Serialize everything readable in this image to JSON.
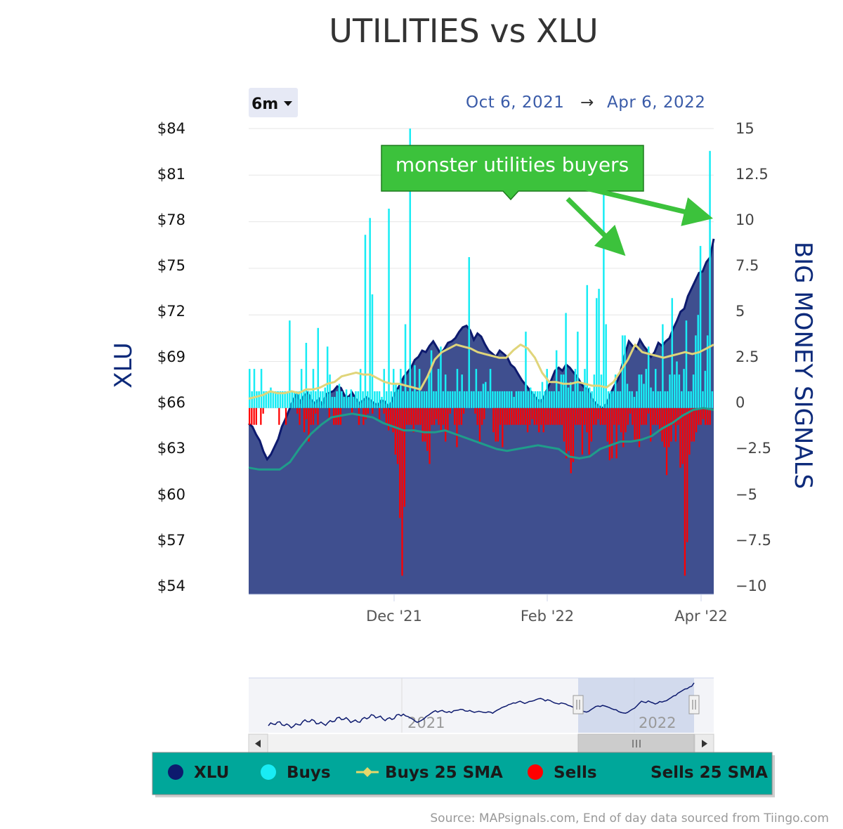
{
  "title": "UTILITIES vs XLU",
  "zoom": {
    "label": "6m"
  },
  "range": {
    "from": "Oct 6, 2021",
    "arrow": "→",
    "to": "Apr 6, 2022"
  },
  "left_axis": {
    "label": "XLU",
    "ticks": [
      "$84",
      "$81",
      "$78",
      "$75",
      "$72",
      "$69",
      "$66",
      "$63",
      "$60",
      "$57",
      "$54"
    ]
  },
  "right_axis": {
    "label": "BIG MONEY SIGNALS",
    "ticks": [
      "15",
      "12.5",
      "10",
      "7.5",
      "5",
      "2.5",
      "0",
      "−2.5",
      "−5",
      "−7.5",
      "−10"
    ]
  },
  "x_ticks": [
    "Dec '21",
    "Feb '22",
    "Apr '22"
  ],
  "annotation": {
    "text": "monster utilities buyers"
  },
  "navigator": {
    "year_labels": [
      "2021",
      "2022"
    ]
  },
  "legend": [
    {
      "label": "XLU",
      "color": "#0d1a6e"
    },
    {
      "label": "Buys",
      "color": "#19ecf4"
    },
    {
      "label": "Buys 25 SMA",
      "color": "#e6d86a"
    },
    {
      "label": "Sells",
      "color": "#ff0000"
    },
    {
      "label": "Sells 25 SMA",
      "color": ""
    }
  ],
  "source": "Source: MAPsignals.com, End of day data sourced from Tiingo.com",
  "colors": {
    "area": "#3f4f8f",
    "xlu_line": "#0d1a6e",
    "buys": "#19ecf4",
    "sells": "#ff0000",
    "buys_sma": "#e0d57a",
    "sells_sma": "#1f9d8a",
    "legend_bg": "#00a79a",
    "annotation_bg": "#3cc23c"
  },
  "chart_data": {
    "type": "bar",
    "dates": [
      "2021-10-06",
      "2021-10-07",
      "2021-10-08",
      "2021-10-11",
      "2021-10-12",
      "2021-10-13",
      "2021-10-14",
      "2021-10-15",
      "2021-10-18",
      "2021-10-19",
      "2021-10-20",
      "2021-10-21",
      "2021-10-22",
      "2021-10-25",
      "2021-10-26",
      "2021-10-27",
      "2021-10-28",
      "2021-10-29",
      "2021-11-01",
      "2021-11-02",
      "2021-11-03",
      "2021-11-04",
      "2021-11-05",
      "2021-11-08",
      "2021-11-09",
      "2021-11-10",
      "2021-11-11",
      "2021-11-12",
      "2021-11-15",
      "2021-11-16",
      "2021-11-17",
      "2021-11-18",
      "2021-11-19",
      "2021-11-22",
      "2021-11-23",
      "2021-11-24",
      "2021-11-26",
      "2021-11-29",
      "2021-11-30",
      "2021-12-01",
      "2021-12-02",
      "2021-12-03",
      "2021-12-06",
      "2021-12-07",
      "2021-12-08",
      "2021-12-09",
      "2021-12-10",
      "2021-12-13",
      "2021-12-14",
      "2021-12-15",
      "2021-12-16",
      "2021-12-17",
      "2021-12-20",
      "2021-12-21",
      "2021-12-22",
      "2021-12-23",
      "2021-12-27",
      "2021-12-28",
      "2021-12-29",
      "2021-12-30",
      "2021-12-31",
      "2022-01-03",
      "2022-01-04",
      "2022-01-05",
      "2022-01-06",
      "2022-01-07",
      "2022-01-10",
      "2022-01-11",
      "2022-01-12",
      "2022-01-13",
      "2022-01-14",
      "2022-01-18",
      "2022-01-19",
      "2022-01-20",
      "2022-01-21",
      "2022-01-24",
      "2022-01-25",
      "2022-01-26",
      "2022-01-27",
      "2022-01-28",
      "2022-01-31",
      "2022-02-01",
      "2022-02-02",
      "2022-02-03",
      "2022-02-04",
      "2022-02-07",
      "2022-02-08",
      "2022-02-09",
      "2022-02-10",
      "2022-02-11",
      "2022-02-14",
      "2022-02-15",
      "2022-02-16",
      "2022-02-17",
      "2022-02-18",
      "2022-02-22",
      "2022-02-23",
      "2022-02-24",
      "2022-02-25",
      "2022-02-28",
      "2022-03-01",
      "2022-03-02",
      "2022-03-03",
      "2022-03-04",
      "2022-03-07",
      "2022-03-08",
      "2022-03-09",
      "2022-03-10",
      "2022-03-11",
      "2022-03-14",
      "2022-03-15",
      "2022-03-16",
      "2022-03-17",
      "2022-03-18",
      "2022-03-21",
      "2022-03-22",
      "2022-03-23",
      "2022-03-24",
      "2022-03-25",
      "2022-03-28",
      "2022-03-29",
      "2022-03-30",
      "2022-03-31",
      "2022-04-01",
      "2022-04-04",
      "2022-04-05",
      "2022-04-06"
    ],
    "xlu": [
      65.0,
      64.8,
      64.3,
      63.9,
      63.2,
      62.7,
      63.0,
      63.5,
      64.0,
      64.8,
      65.3,
      65.9,
      66.5,
      66.9,
      66.4,
      66.8,
      67.0,
      66.5,
      66.3,
      66.6,
      66.2,
      66.9,
      67.0,
      67.1,
      67.4,
      67.3,
      66.8,
      66.7,
      67.0,
      66.6,
      66.3,
      66.5,
      66.7,
      66.5,
      66.3,
      66.2,
      66.5,
      66.4,
      66.0,
      66.6,
      67.1,
      67.5,
      68.0,
      68.3,
      68.6,
      69.1,
      69.3,
      69.7,
      69.6,
      70.0,
      70.3,
      69.9,
      69.5,
      69.8,
      70.2,
      70.3,
      70.5,
      70.9,
      71.2,
      71.3,
      71.0,
      70.4,
      70.8,
      70.6,
      70.1,
      69.7,
      69.5,
      69.3,
      69.7,
      69.5,
      69.3,
      68.8,
      68.6,
      68.2,
      67.8,
      67.5,
      67.2,
      66.9,
      66.6,
      66.4,
      66.7,
      67.3,
      67.8,
      68.4,
      68.6,
      68.4,
      68.8,
      68.6,
      68.3,
      68.0,
      67.6,
      67.3,
      67.2,
      66.6,
      66.3,
      66.1,
      66.0,
      66.3,
      66.9,
      67.4,
      67.8,
      68.6,
      69.5,
      70.3,
      70.0,
      69.8,
      70.4,
      70.0,
      69.7,
      69.3,
      69.6,
      70.2,
      70.0,
      70.3,
      70.5,
      71.1,
      71.6,
      72.2,
      72.4,
      73.2,
      73.7,
      74.2,
      74.7,
      74.8,
      75.4,
      75.7,
      76.9
    ],
    "buys": [
      2.1,
      0.9,
      2.1,
      0.9,
      0.9,
      2.1,
      0.9,
      0.9,
      0.9,
      1.1,
      0.9,
      0.9,
      0.9,
      0.9,
      0.9,
      0.9,
      0.9,
      4.7,
      0.9,
      0.9,
      0.9,
      0.9,
      2.1,
      0.9,
      3.5,
      0.9,
      0.9,
      2.1,
      0.9,
      4.3,
      0.9,
      0.9,
      1.1,
      3.3,
      1.8,
      0.6,
      0.6,
      0.9,
      1.3,
      0.9,
      0.6,
      1.0,
      0.6,
      1.0,
      0.6,
      0.9,
      0.9,
      2.1,
      0.9,
      9.3,
      0.9,
      10.2,
      6.1,
      0.9,
      0.9,
      0.9,
      0.6,
      2.1,
      0.9,
      10.7,
      0.9,
      2.1,
      1.3,
      1.0,
      2.1,
      0.9,
      4.5,
      0.9,
      15.0,
      0.9,
      2.3,
      0.9,
      2.1,
      0.9,
      0.9,
      0.9,
      1.8,
      3.1,
      0.9,
      0.9,
      2.1,
      3.3,
      0.9,
      1.8,
      0.9,
      0.9,
      0.9,
      0.9,
      2.1,
      0.9,
      1.8,
      0.9,
      0.9,
      8.1,
      0.9,
      0.9,
      2.1,
      0.9,
      0.9,
      1.3,
      1.4,
      0.9,
      2.1,
      0.9,
      0.9,
      0.9,
      0.9,
      0.9,
      0.9,
      0.9,
      0.9,
      0.9,
      0.6,
      0.9,
      0.9,
      0.9,
      0.9,
      4.1,
      0.9,
      1.1,
      0.9,
      0.9,
      0.9,
      0.9,
      1.4,
      0.9,
      2.1,
      0.9,
      0.9,
      0.9,
      3.1,
      0.9,
      1.8,
      1.8,
      5.1,
      1.1,
      1.4,
      0.9,
      2.1,
      4.1,
      0.9,
      0.9,
      2.1,
      6.6,
      1.1,
      0.9,
      1.8,
      5.9,
      6.4,
      1.8,
      12.0,
      4.5,
      0.9,
      0.9,
      0.9,
      1.8,
      0.9,
      0.9,
      3.9,
      3.9,
      1.3,
      0.9,
      0.9,
      0.6,
      0.9,
      1.8,
      1.8,
      1.3,
      2.1,
      3.3,
      1.1,
      0.9,
      2.1,
      0.9,
      0.9,
      4.5,
      0.9,
      0.9,
      1.8,
      5.9,
      1.8,
      2.5,
      1.8,
      0.9,
      2.1,
      4.7,
      0.9,
      0.9,
      1.8,
      3.9,
      5.0,
      8.7,
      0.9,
      2.0,
      3.9,
      13.8,
      0.9
    ],
    "sells": [
      -0.9,
      -0.9,
      -0.9,
      -0.9,
      0,
      -0.9,
      -0.3,
      0,
      0,
      0,
      0,
      0,
      0,
      -0.9,
      0,
      0,
      -0.9,
      0,
      0,
      0,
      0,
      -0.3,
      -0.9,
      0,
      -1.3,
      -0.6,
      -1.8,
      -0.9,
      -0.9,
      -0.3,
      -0.9,
      0,
      0,
      0,
      0,
      -0.6,
      0,
      -0.9,
      -0.9,
      -0.9,
      -0.9,
      0,
      0,
      0,
      0,
      -0.3,
      0,
      0,
      -0.9,
      0,
      -0.9,
      -0.6,
      -0.3,
      0,
      -0.3,
      0,
      0,
      -0.6,
      0,
      -0.3,
      -0.9,
      -1.2,
      -0.9,
      -1.3,
      -2.5,
      -3.0,
      -5.9,
      -9.0,
      -5.3,
      -0.9,
      -0.9,
      -0.9,
      -1.3,
      -0.9,
      -0.9,
      -0.9,
      -1.8,
      -1.8,
      -2.3,
      -3.0,
      -0.9,
      -0.9,
      -0.6,
      -0.9,
      -1.3,
      -0.9,
      -1.8,
      -1.3,
      -0.3,
      0,
      -0.9,
      -2.1,
      -0.9,
      -0.9,
      -0.3,
      0,
      0,
      0,
      0,
      -0.3,
      -0.9,
      -1.8,
      -0.9,
      -0.6,
      0,
      0,
      0,
      -1.3,
      -1.8,
      -1.8,
      -0.9,
      -2.1,
      -0.9,
      -0.9,
      -0.9,
      -0.9,
      -0.9,
      -0.9,
      -0.9,
      -0.9,
      -0.9,
      -0.9,
      -1.3,
      -0.9,
      -0.6,
      -0.9,
      -0.9,
      -1.3,
      -0.9,
      -1.3,
      -0.9,
      -0.9,
      -0.9,
      -0.9,
      -0.9,
      -0.9,
      -0.9,
      -0.9,
      -1.8,
      -2.7,
      -2.3,
      -3.5,
      -2.9,
      -0.9,
      -0.9,
      -0.9,
      -2.5,
      -0.9,
      -1.3,
      -2.5,
      -1.8,
      -0.9,
      -0.9,
      -0.6,
      -0.9,
      -0.9,
      -0.9,
      -1.8,
      -2.8,
      -2.7,
      -0.9,
      -2.7,
      -0.9,
      -1.3,
      -2.1,
      -1.3,
      -0.9,
      -0.3,
      -0.9,
      -1.8,
      -1.8,
      -2.1,
      -0.9,
      -0.9,
      -0.9,
      -0.3,
      -1.8,
      -0.9,
      -0.9,
      -0.9,
      -1.3,
      -1.8,
      -2.1,
      -3.6,
      -2.1,
      -1.8,
      -0.9,
      -1.8,
      -0.9,
      -3.2,
      -3.0,
      -9.0,
      -7.2,
      -2.5,
      -1.8,
      -1.8,
      -1.3,
      -0.9,
      -0.9,
      -0.6,
      -0.9,
      -0.9,
      -0.9,
      0
    ],
    "buys_sma": [
      0.5,
      0.6,
      0.7,
      0.9,
      0.8,
      0.8,
      0.9,
      0.8,
      1.0,
      1.0,
      1.1,
      1.3,
      1.4,
      1.7,
      1.8,
      1.9,
      1.8,
      1.8,
      1.6,
      1.4,
      1.3,
      1.3,
      1.2,
      1.1,
      1.0,
      1.7,
      2.6,
      3.0,
      3.2,
      3.4,
      3.3,
      3.2,
      3.0,
      2.9,
      2.8,
      2.7,
      2.7,
      3.1,
      3.4,
      3.2,
      2.7,
      1.9,
      1.4,
      1.4,
      1.3,
      1.3,
      1.4,
      1.3,
      1.2,
      1.2,
      1.1,
      1.4,
      2.0,
      2.6,
      3.4,
      3.0,
      2.9,
      2.8,
      2.7,
      2.8,
      2.9,
      3.0,
      2.9,
      3.0,
      3.2,
      3.4
    ],
    "sells_sma": [
      -3.2,
      -3.3,
      -3.3,
      -3.3,
      -2.9,
      -2.1,
      -1.4,
      -0.9,
      -0.5,
      -0.4,
      -0.3,
      -0.4,
      -0.5,
      -0.8,
      -1.0,
      -1.2,
      -1.2,
      -1.3,
      -1.3,
      -1.2,
      -1.4,
      -1.6,
      -1.8,
      -2.0,
      -2.2,
      -2.3,
      -2.2,
      -2.1,
      -2.0,
      -2.1,
      -2.2,
      -2.6,
      -2.7,
      -2.6,
      -2.2,
      -2.0,
      -1.8,
      -1.8,
      -1.7,
      -1.5,
      -1.1,
      -0.8,
      -0.4,
      -0.1,
      0.0,
      -0.1
    ],
    "xlu_range": [
      54,
      84
    ],
    "signals_range": [
      -10,
      15
    ],
    "annotation": "monster utilities buyers"
  }
}
